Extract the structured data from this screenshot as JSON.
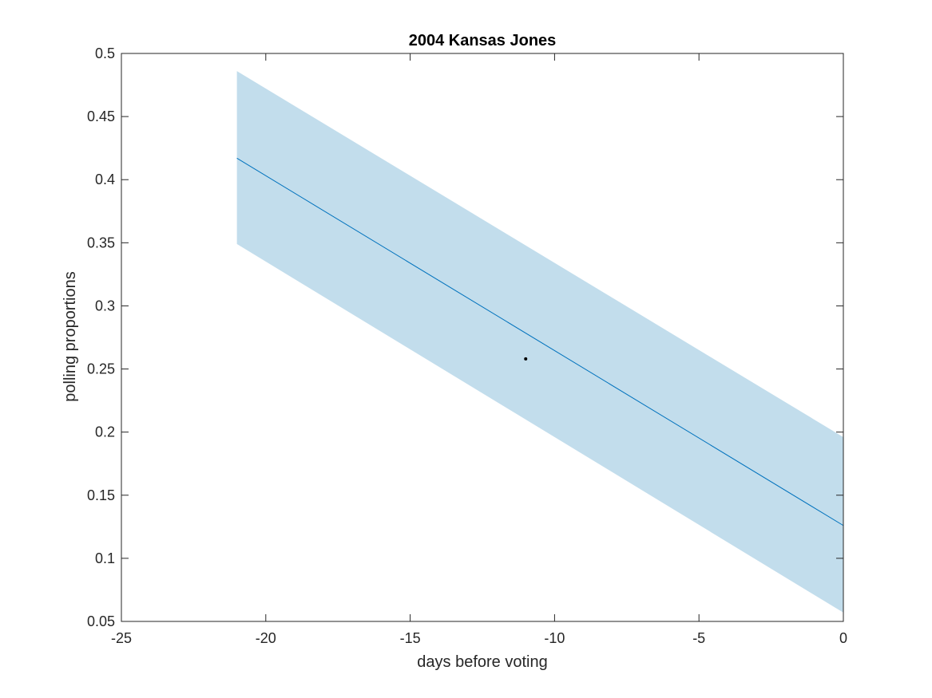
{
  "chart_data": {
    "type": "line",
    "title": "2004 Kansas Jones",
    "xlabel": "days before voting",
    "ylabel": "polling proportions",
    "xlim": [
      -25,
      0
    ],
    "ylim": [
      0.05,
      0.5
    ],
    "xticks": [
      -25,
      -20,
      -15,
      -10,
      -5,
      0
    ],
    "yticks": [
      0.05,
      0.1,
      0.15,
      0.2,
      0.25,
      0.3,
      0.35,
      0.4,
      0.45,
      0.5
    ],
    "xtick_labels": [
      "-25",
      "-20",
      "-15",
      "-10",
      "-5",
      "0"
    ],
    "ytick_labels": [
      "0.05",
      "0.1",
      "0.15",
      "0.2",
      "0.25",
      "0.3",
      "0.35",
      "0.4",
      "0.45",
      "0.5"
    ],
    "grid": false,
    "box": true,
    "trend_line": {
      "x": [
        -21,
        0
      ],
      "y": [
        0.417,
        0.126
      ],
      "color": "#0072BD"
    },
    "band": {
      "x": [
        -21,
        0
      ],
      "upper": [
        0.486,
        0.196
      ],
      "lower": [
        0.349,
        0.057
      ],
      "color": "#C2DDEC"
    },
    "points": [
      {
        "x": -11,
        "y": 0.258
      }
    ],
    "point_color": "#000000"
  }
}
